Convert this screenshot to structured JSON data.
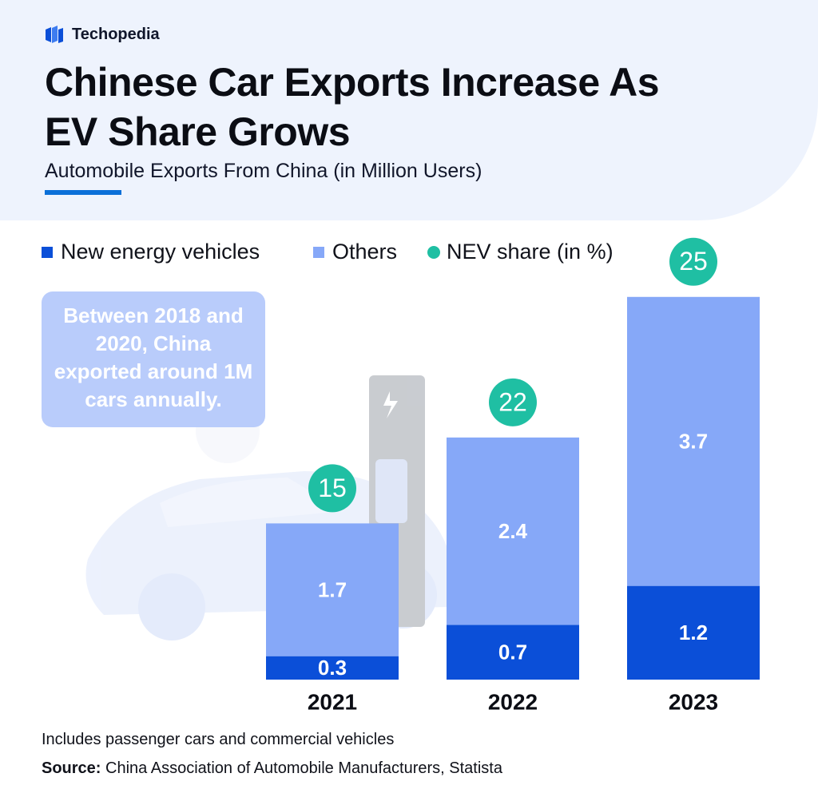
{
  "brand": "Techopedia",
  "chart_data": {
    "type": "bar",
    "title": "Chinese Car Exports Increase As EV Share Grows",
    "subtitle": "Automobile Exports From China (in Million Users)",
    "annotation": "Between 2018 and 2020, China exported around 1M cars annually.",
    "categories": [
      "2021",
      "2022",
      "2023"
    ],
    "stacked": true,
    "series": [
      {
        "name": "New energy vehicles",
        "color": "#0b4fd8",
        "values": [
          0.3,
          0.7,
          1.2
        ]
      },
      {
        "name": "Others",
        "color": "#86a8f8",
        "values": [
          1.7,
          2.4,
          3.7
        ]
      },
      {
        "name": "NEV share (in %)",
        "color": "#1fbfa3",
        "type": "point",
        "values": [
          15,
          22,
          25
        ]
      }
    ],
    "legend": "top-left",
    "note": "Includes passenger cars and commercial vehicles",
    "source_label": "Source:",
    "source": "China Association of Automobile Manufacturers, Statista"
  }
}
